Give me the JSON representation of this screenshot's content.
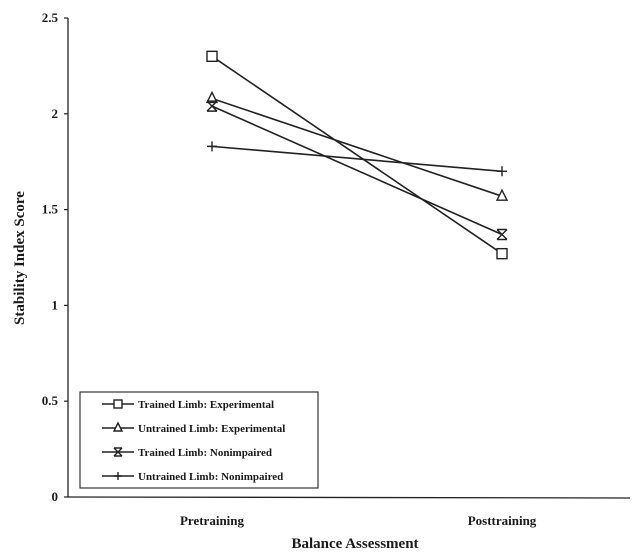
{
  "chart_data": {
    "type": "line",
    "title": "",
    "xlabel": "Balance Assessment",
    "ylabel": "Stability Index Score",
    "categories": [
      "Pretraining",
      "Posttraining"
    ],
    "ylim": [
      0,
      2.5
    ],
    "yticks": [
      "0",
      "0.5",
      "1",
      "1.5",
      "2",
      "2.5"
    ],
    "grid": false,
    "legend_position": "bottom-left",
    "series": [
      {
        "name": "Trained Limb: Experimental",
        "marker": "square",
        "values": [
          2.3,
          1.27
        ]
      },
      {
        "name": "Untrained Limb: Experimental",
        "marker": "triangle",
        "values": [
          2.08,
          1.57
        ]
      },
      {
        "name": "Trained Limb: Nonimpaired",
        "marker": "x-cross",
        "values": [
          2.04,
          1.37
        ]
      },
      {
        "name": "Untrained Limb: Nonimpaired",
        "marker": "plus",
        "values": [
          1.83,
          1.7
        ]
      }
    ],
    "line_color": "#222222"
  }
}
